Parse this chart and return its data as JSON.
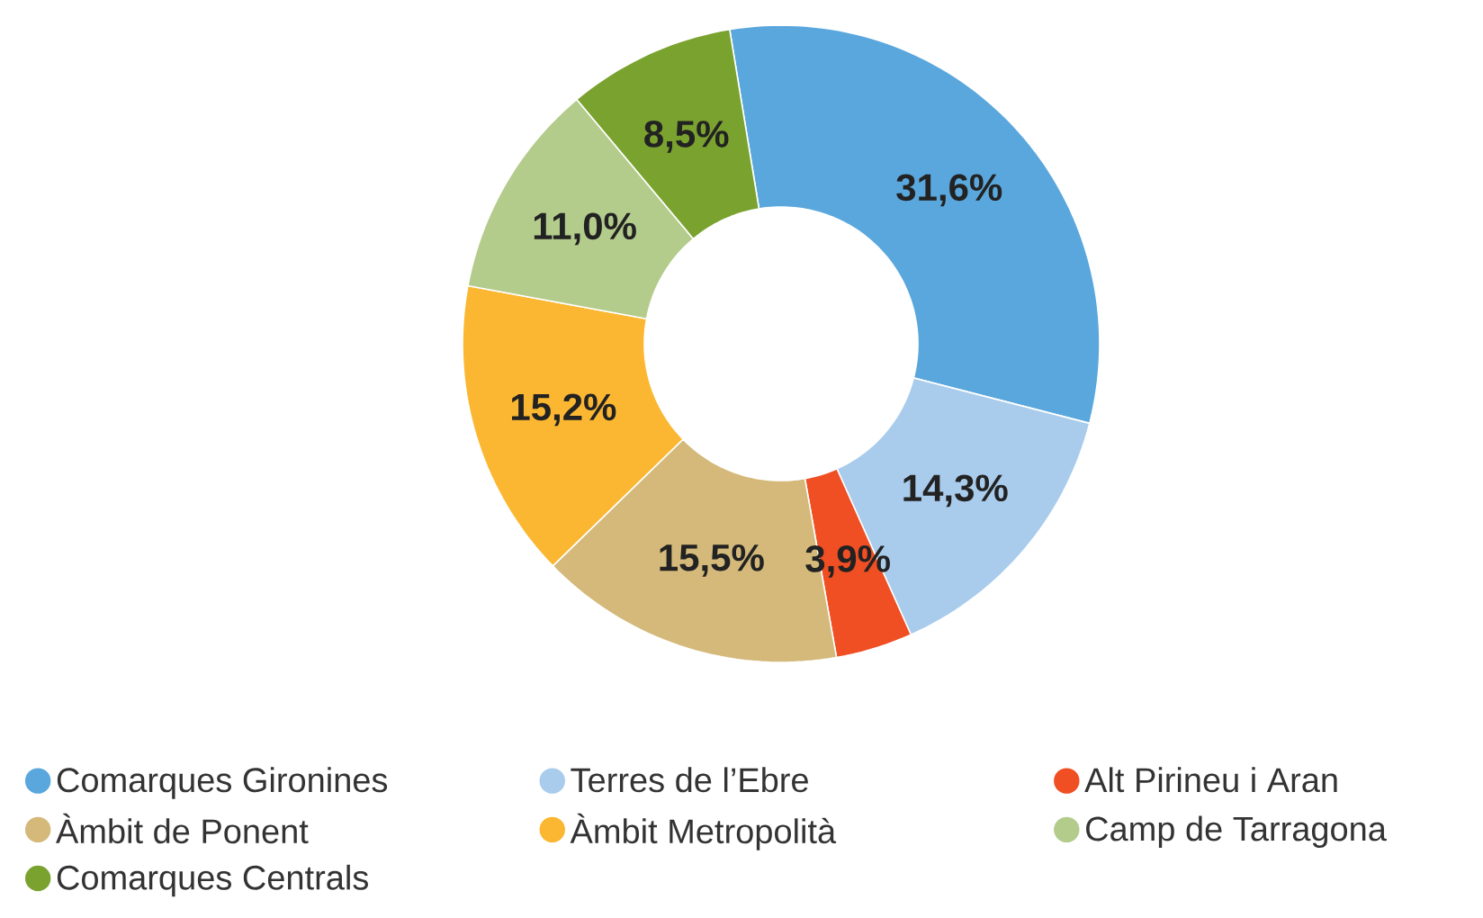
{
  "chart_data": {
    "type": "donut",
    "categories": [
      "Comarques Gironines",
      "Terres de l’Ebre",
      "Alt Pirineu i Aran",
      "Àmbit de Ponent",
      "Àmbit Metropolità",
      "Camp de Tarragona",
      "Comarques Centrals"
    ],
    "values": [
      31.6,
      14.3,
      3.9,
      15.5,
      15.2,
      11.0,
      8.5
    ],
    "colors": [
      "#5aa7dd",
      "#a9ccec",
      "#f04e23",
      "#d4b97a",
      "#fbb731",
      "#b3cc8c",
      "#7aa22f"
    ],
    "value_labels": [
      "31,6%",
      "14,3%",
      "3,9%",
      "15,5%",
      "15,2%",
      "11,0%",
      "8,5%"
    ],
    "legend": "bottom"
  }
}
